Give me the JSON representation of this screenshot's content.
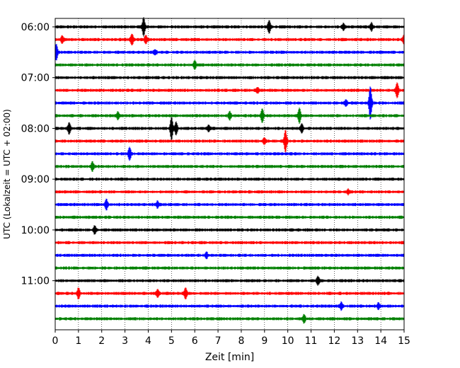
{
  "chart_data": {
    "type": "line",
    "xlabel": "Zeit  [min]",
    "ylabel": "UTC (Lokalzeit = UTC + 02:00)",
    "xlim": [
      0,
      15
    ],
    "ylim_time": [
      "05:50",
      "11:58"
    ],
    "x_ticks": [
      "0",
      "1",
      "2",
      "3",
      "4",
      "5",
      "6",
      "7",
      "8",
      "9",
      "10",
      "11",
      "12",
      "13",
      "14",
      "15"
    ],
    "y_ticks": [
      "06:00",
      "07:00",
      "08:00",
      "09:00",
      "10:00",
      "11:00"
    ],
    "grid": "vertical-dotted",
    "trace_interval_min": 15,
    "colors": [
      "#000000",
      "#ff0000",
      "#0000ff",
      "#008000"
    ],
    "traces": [
      {
        "time": "06:00",
        "color": "#000000",
        "events": [
          [
            3.8,
            12
          ],
          [
            9.2,
            8
          ],
          [
            12.4,
            4
          ],
          [
            13.6,
            5
          ]
        ]
      },
      {
        "time": "06:15",
        "color": "#ff0000",
        "events": [
          [
            0.3,
            5
          ],
          [
            3.3,
            7
          ],
          [
            3.9,
            5
          ],
          [
            15.0,
            6
          ]
        ]
      },
      {
        "time": "06:30",
        "color": "#0000ff",
        "events": [
          [
            0.05,
            10
          ],
          [
            4.3,
            3
          ]
        ]
      },
      {
        "time": "06:45",
        "color": "#008000",
        "events": [
          [
            6.0,
            5
          ]
        ]
      },
      {
        "time": "07:00",
        "color": "#000000",
        "events": []
      },
      {
        "time": "07:15",
        "color": "#ff0000",
        "events": [
          [
            8.7,
            3
          ],
          [
            14.7,
            10
          ]
        ]
      },
      {
        "time": "07:30",
        "color": "#0000ff",
        "events": [
          [
            12.5,
            4
          ],
          [
            13.55,
            22
          ]
        ]
      },
      {
        "time": "07:45",
        "color": "#008000",
        "events": [
          [
            2.7,
            5
          ],
          [
            7.5,
            5
          ],
          [
            8.9,
            9
          ],
          [
            10.5,
            10
          ]
        ]
      },
      {
        "time": "08:00",
        "color": "#000000",
        "events": [
          [
            0.6,
            7
          ],
          [
            5.0,
            15
          ],
          [
            5.2,
            8
          ],
          [
            6.6,
            4
          ],
          [
            10.6,
            6
          ]
        ]
      },
      {
        "time": "08:15",
        "color": "#ff0000",
        "events": [
          [
            9.0,
            4
          ],
          [
            9.9,
            14
          ]
        ]
      },
      {
        "time": "08:30",
        "color": "#0000ff",
        "events": [
          [
            3.2,
            8
          ]
        ]
      },
      {
        "time": "08:45",
        "color": "#008000",
        "events": [
          [
            1.6,
            6
          ]
        ]
      },
      {
        "time": "09:00",
        "color": "#000000",
        "events": []
      },
      {
        "time": "09:15",
        "color": "#ff0000",
        "events": [
          [
            12.6,
            3
          ]
        ]
      },
      {
        "time": "09:30",
        "color": "#0000ff",
        "events": [
          [
            2.2,
            7
          ],
          [
            4.4,
            4
          ]
        ]
      },
      {
        "time": "09:45",
        "color": "#008000",
        "events": []
      },
      {
        "time": "10:00",
        "color": "#000000",
        "events": [
          [
            1.7,
            5
          ]
        ]
      },
      {
        "time": "10:15",
        "color": "#ff0000",
        "events": []
      },
      {
        "time": "10:30",
        "color": "#0000ff",
        "events": [
          [
            6.5,
            4
          ]
        ]
      },
      {
        "time": "10:45",
        "color": "#008000",
        "events": []
      },
      {
        "time": "11:00",
        "color": "#000000",
        "events": [
          [
            11.3,
            5
          ]
        ]
      },
      {
        "time": "11:15",
        "color": "#ff0000",
        "events": [
          [
            1.0,
            7
          ],
          [
            4.4,
            5
          ],
          [
            5.6,
            7
          ]
        ]
      },
      {
        "time": "11:30",
        "color": "#0000ff",
        "events": [
          [
            12.3,
            5
          ],
          [
            13.9,
            4
          ]
        ]
      },
      {
        "time": "11:45",
        "color": "#008000",
        "events": [
          [
            10.7,
            5
          ]
        ]
      }
    ]
  }
}
